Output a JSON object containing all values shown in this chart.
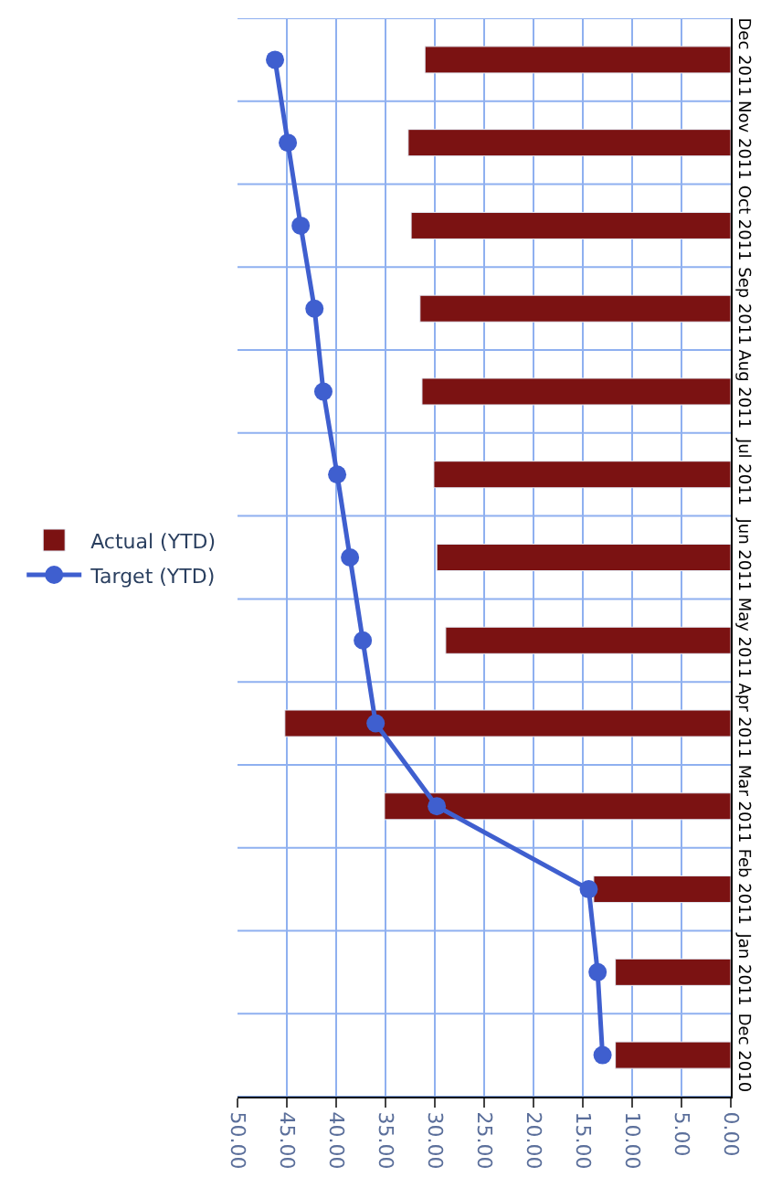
{
  "chart_data": {
    "type": "bar",
    "orientation": "horizontal",
    "categories": [
      "Dec 2011",
      "Nov 2011",
      "Oct 2011",
      "Sep 2011",
      "Aug 2011",
      "Jul 2011",
      "Jun 2011",
      "May 2011",
      "Apr 2011",
      "Mar 2011",
      "Feb 2011",
      "Jan 2011",
      "Dec 2010"
    ],
    "series": [
      {
        "name": "Target (YTD)",
        "type": "line",
        "color": "#3f5fcf",
        "marker": "circle",
        "values": [
          46.2,
          44.9,
          43.6,
          42.2,
          41.3,
          39.9,
          38.6,
          37.3,
          36.0,
          29.8,
          14.4,
          13.5,
          13.0
        ]
      },
      {
        "name": "Actual (YTD)",
        "color": "#7b1212",
        "values": [
          31.0,
          32.7,
          32.4,
          31.5,
          31.3,
          30.1,
          29.8,
          28.9,
          45.2,
          35.1,
          13.9,
          11.7,
          11.7
        ]
      }
    ],
    "xlim": [
      50,
      0
    ],
    "xticks": [
      {
        "value": 50,
        "label": "50.00"
      },
      {
        "value": 45,
        "label": "45.00"
      },
      {
        "value": 40,
        "label": "40.00"
      },
      {
        "value": 35,
        "label": "35.00"
      },
      {
        "value": 30,
        "label": "30.00"
      },
      {
        "value": 25,
        "label": "25.00"
      },
      {
        "value": 20,
        "label": "20.00"
      },
      {
        "value": 15,
        "label": "15.00"
      },
      {
        "value": 10,
        "label": "10.00"
      },
      {
        "value": 5,
        "label": "5.00"
      },
      {
        "value": 0,
        "label": "0.00"
      }
    ],
    "grid": true,
    "legend": "left"
  }
}
